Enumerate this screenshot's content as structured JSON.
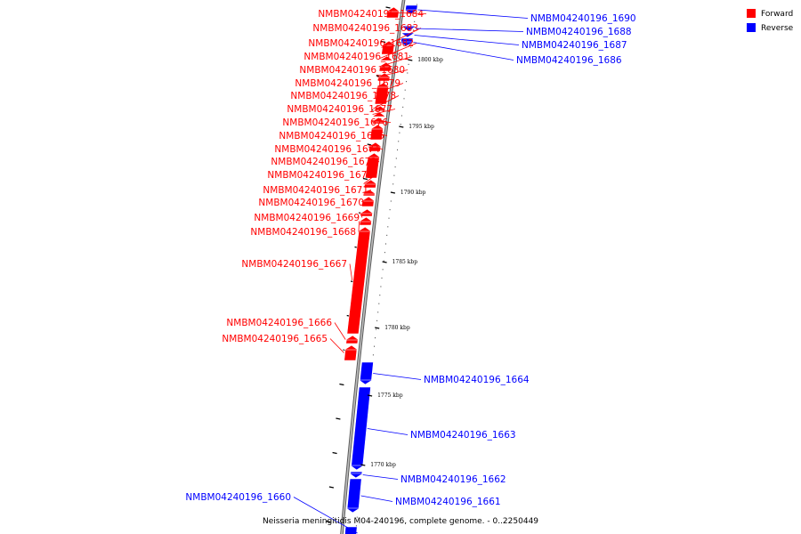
{
  "caption": "Neisseria meningitidis M04-240196, complete genome. - 0..2250449",
  "colors": {
    "forward": "#ff0000",
    "reverse": "#0000ff",
    "axis": "#808080",
    "tick": "#000000"
  },
  "legend": [
    {
      "label": "Forward",
      "strand": "forward"
    },
    {
      "label": "Reverse",
      "strand": "reverse"
    }
  ],
  "scale_ticks": [
    "1770 kbp",
    "1775 kbp",
    "1780 kbp",
    "1785 kbp",
    "1790 kbp",
    "1795 kbp",
    "1800 kbp"
  ],
  "genes": [
    {
      "name": "NMBM04240196_1660",
      "strand": "reverse"
    },
    {
      "name": "NMBM04240196_1661",
      "strand": "reverse"
    },
    {
      "name": "NMBM04240196_1662",
      "strand": "reverse"
    },
    {
      "name": "NMBM04240196_1663",
      "strand": "reverse"
    },
    {
      "name": "NMBM04240196_1664",
      "strand": "reverse"
    },
    {
      "name": "NMBM04240196_1665",
      "strand": "forward"
    },
    {
      "name": "NMBM04240196_1666",
      "strand": "forward"
    },
    {
      "name": "NMBM04240196_1667",
      "strand": "forward"
    },
    {
      "name": "NMBM04240196_1668",
      "strand": "forward"
    },
    {
      "name": "NMBM04240196_1669",
      "strand": "forward"
    },
    {
      "name": "NMBM04240196_1670",
      "strand": "forward"
    },
    {
      "name": "NMBM04240196_1671",
      "strand": "forward"
    },
    {
      "name": "NMBM04240196_1672",
      "strand": "forward"
    },
    {
      "name": "NMBM04240196_1673",
      "strand": "forward"
    },
    {
      "name": "NMBM04240196_1674",
      "strand": "forward"
    },
    {
      "name": "NMBM04240196_1675",
      "strand": "forward"
    },
    {
      "name": "NMBM04240196_1676",
      "strand": "forward"
    },
    {
      "name": "NMBM04240196_1677",
      "strand": "forward"
    },
    {
      "name": "NMBM04240196_1678",
      "strand": "forward"
    },
    {
      "name": "NMBM04240196_1679",
      "strand": "forward"
    },
    {
      "name": "NMBM04240196_1680",
      "strand": "forward"
    },
    {
      "name": "NMBM04240196_1681",
      "strand": "forward"
    },
    {
      "name": "NMBM04240196_1682",
      "strand": "forward"
    },
    {
      "name": "NMBM04240196_1683",
      "strand": "forward"
    },
    {
      "name": "NMBM04240196_1684",
      "strand": "forward"
    },
    {
      "name": "NMBM04240196_1686",
      "strand": "reverse"
    },
    {
      "name": "NMBM04240196_1687",
      "strand": "reverse"
    },
    {
      "name": "NMBM04240196_1688",
      "strand": "reverse"
    },
    {
      "name": "NMBM04240196_1690",
      "strand": "reverse"
    }
  ]
}
